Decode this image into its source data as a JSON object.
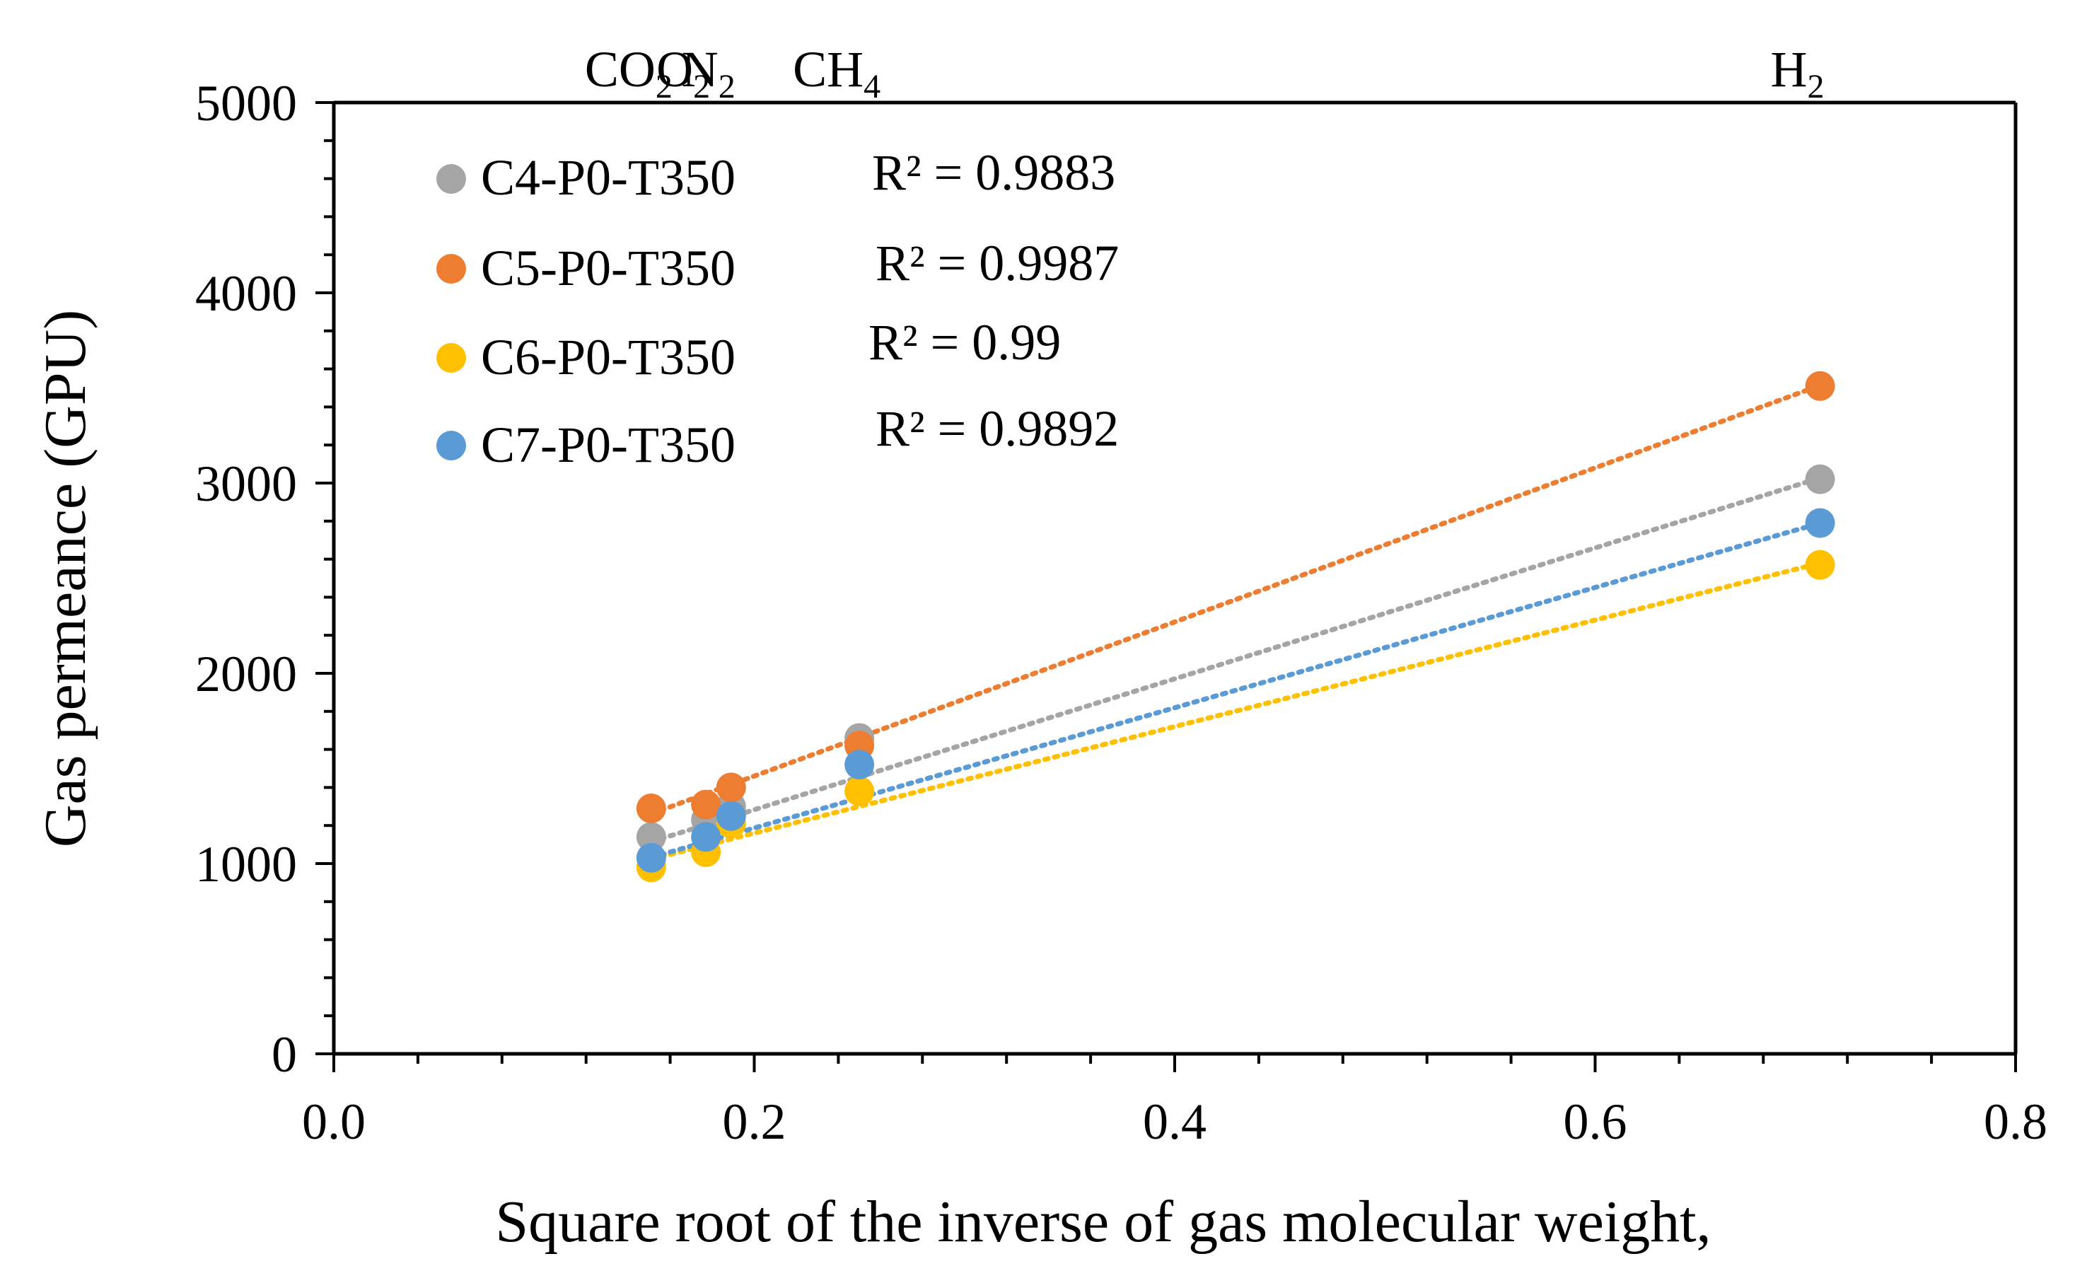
{
  "chart_data": {
    "type": "scatter",
    "title": "",
    "xlabel": "Square root of the inverse of gas molecular  weight,",
    "ylabel": "Gas permeance  (GPU)",
    "xlim": [
      0.0,
      0.8
    ],
    "ylim": [
      0,
      5000
    ],
    "x_major_ticks": [
      0.0,
      0.2,
      0.4,
      0.6,
      0.8
    ],
    "x_tick_labels": [
      "0.0",
      "0.2",
      "0.4",
      "0.6",
      "0.8"
    ],
    "y_major_ticks": [
      0,
      1000,
      2000,
      3000,
      4000,
      5000
    ],
    "y_tick_labels": [
      "0",
      "1000",
      "2000",
      "3000",
      "4000",
      "5000"
    ],
    "gas_annotations": [
      {
        "base": "CO",
        "sub": "2",
        "x": 0.151
      },
      {
        "base": "O",
        "sub": "2",
        "x": 0.177
      },
      {
        "base": "N",
        "sub": "2",
        "x": 0.189
      },
      {
        "base": "CH",
        "sub": "4",
        "x": 0.25
      },
      {
        "base": "H",
        "sub": "2",
        "x": 0.707
      }
    ],
    "x": [
      0.151,
      0.177,
      0.189,
      0.25,
      0.707
    ],
    "series": [
      {
        "name": "C4-P0-T350",
        "r2_label": "R² = 0.9883",
        "color": "#A5A5A5",
        "values": [
          1140,
          1230,
          1300,
          1660,
          3020
        ],
        "trend": {
          "slope": 3440,
          "intercept": 595
        }
      },
      {
        "name": "C5-P0-T350",
        "r2_label": "R² = 0.9987",
        "color": "#ED7D31",
        "values": [
          1290,
          1310,
          1400,
          1620,
          3510
        ],
        "trend": {
          "slope": 4050,
          "intercept": 650
        }
      },
      {
        "name": "C6-P0-T350",
        "r2_label": "R² = 0.99",
        "color": "#FFC000",
        "values": [
          980,
          1060,
          1210,
          1380,
          2570
        ],
        "trend": {
          "slope": 2800,
          "intercept": 600
        }
      },
      {
        "name": "C7-P0-T350",
        "r2_label": "R² = 0.9892",
        "color": "#5B9BD5",
        "values": [
          1030,
          1140,
          1250,
          1520,
          2790
        ],
        "trend": {
          "slope": 3160,
          "intercept": 555
        }
      }
    ],
    "legend_position": "top-left",
    "grid": false
  }
}
